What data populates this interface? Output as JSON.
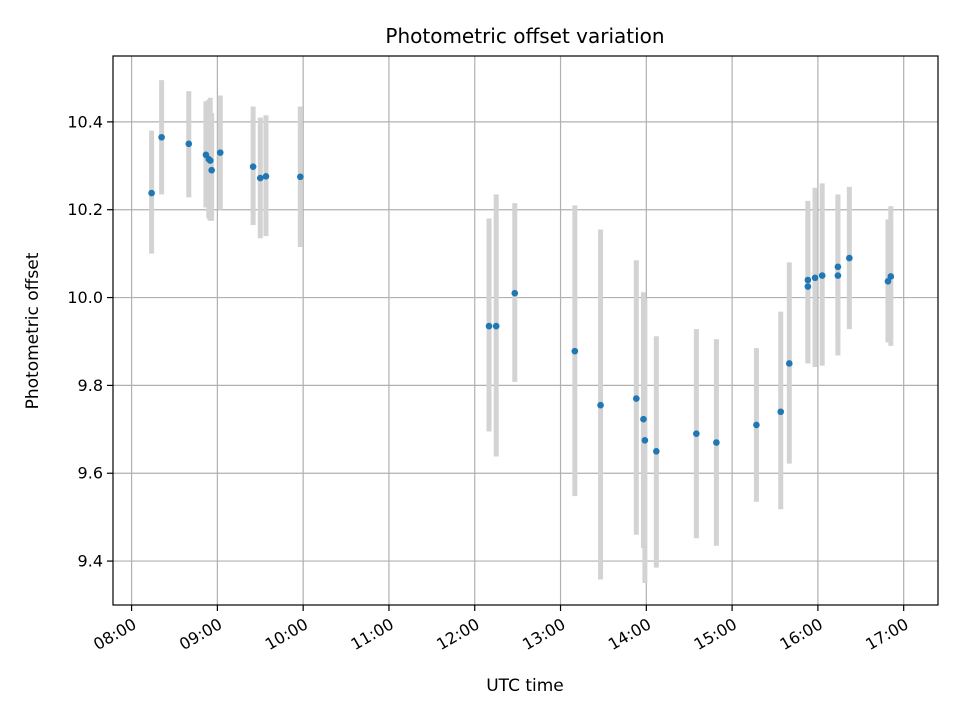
{
  "chart_data": {
    "type": "scatter",
    "title": "Photometric offset variation",
    "xlabel": "UTC time",
    "ylabel": "Photometric offset",
    "xlim": [
      "07:47",
      "17:24"
    ],
    "ylim": [
      9.3,
      10.55
    ],
    "x_ticks": [
      "08:00",
      "09:00",
      "10:00",
      "11:00",
      "12:00",
      "13:00",
      "14:00",
      "15:00",
      "16:00",
      "17:00"
    ],
    "y_ticks": [
      9.4,
      9.6,
      9.8,
      10.0,
      10.2,
      10.4
    ],
    "grid": true,
    "marker_color": "#1f77b4",
    "errorbar_color": "#d3d3d3",
    "points": [
      {
        "x": "08:14",
        "y": 10.238,
        "lo": 10.1,
        "hi": 10.38
      },
      {
        "x": "08:21",
        "y": 10.365,
        "lo": 10.235,
        "hi": 10.495
      },
      {
        "x": "08:40",
        "y": 10.35,
        "lo": 10.228,
        "hi": 10.47
      },
      {
        "x": "08:52",
        "y": 10.325,
        "lo": 10.205,
        "hi": 10.447
      },
      {
        "x": "08:54",
        "y": 10.315,
        "lo": 10.18,
        "hi": 10.45
      },
      {
        "x": "08:55",
        "y": 10.312,
        "lo": 10.175,
        "hi": 10.455
      },
      {
        "x": "08:56",
        "y": 10.29,
        "lo": 10.175,
        "hi": 10.42
      },
      {
        "x": "09:02",
        "y": 10.33,
        "lo": 10.2,
        "hi": 10.46
      },
      {
        "x": "09:25",
        "y": 10.298,
        "lo": 10.165,
        "hi": 10.435
      },
      {
        "x": "09:30",
        "y": 10.272,
        "lo": 10.135,
        "hi": 10.41
      },
      {
        "x": "09:34",
        "y": 10.276,
        "lo": 10.14,
        "hi": 10.415
      },
      {
        "x": "09:58",
        "y": 10.275,
        "lo": 10.115,
        "hi": 10.435
      },
      {
        "x": "12:10",
        "y": 9.935,
        "lo": 9.695,
        "hi": 10.18
      },
      {
        "x": "12:15",
        "y": 9.935,
        "lo": 9.638,
        "hi": 10.235
      },
      {
        "x": "12:28",
        "y": 10.01,
        "lo": 9.808,
        "hi": 10.215
      },
      {
        "x": "13:10",
        "y": 9.878,
        "lo": 9.548,
        "hi": 10.21
      },
      {
        "x": "13:28",
        "y": 9.755,
        "lo": 9.358,
        "hi": 10.155
      },
      {
        "x": "13:53",
        "y": 9.77,
        "lo": 9.46,
        "hi": 10.085
      },
      {
        "x": "13:58",
        "y": 9.723,
        "lo": 9.43,
        "hi": 10.012
      },
      {
        "x": "13:59",
        "y": 9.675,
        "lo": 9.35,
        "hi": 9.998
      },
      {
        "x": "14:07",
        "y": 9.65,
        "lo": 9.385,
        "hi": 9.912
      },
      {
        "x": "14:35",
        "y": 9.69,
        "lo": 9.452,
        "hi": 9.928
      },
      {
        "x": "14:49",
        "y": 9.67,
        "lo": 9.435,
        "hi": 9.905
      },
      {
        "x": "15:17",
        "y": 9.71,
        "lo": 9.535,
        "hi": 9.885
      },
      {
        "x": "15:34",
        "y": 9.74,
        "lo": 9.518,
        "hi": 9.968
      },
      {
        "x": "15:40",
        "y": 9.85,
        "lo": 9.622,
        "hi": 10.08
      },
      {
        "x": "15:53",
        "y": 10.025,
        "lo": 9.85,
        "hi": 10.22
      },
      {
        "x": "15:53",
        "y": 10.04,
        "lo": 9.85,
        "hi": 10.205
      },
      {
        "x": "15:58",
        "y": 10.045,
        "lo": 9.842,
        "hi": 10.25
      },
      {
        "x": "16:03",
        "y": 10.05,
        "lo": 9.845,
        "hi": 10.26
      },
      {
        "x": "16:14",
        "y": 10.05,
        "lo": 9.868,
        "hi": 10.235
      },
      {
        "x": "16:14",
        "y": 10.07,
        "lo": 9.91,
        "hi": 10.23
      },
      {
        "x": "16:22",
        "y": 10.09,
        "lo": 9.928,
        "hi": 10.252
      },
      {
        "x": "16:49",
        "y": 10.037,
        "lo": 9.898,
        "hi": 10.178
      },
      {
        "x": "16:51",
        "y": 10.048,
        "lo": 9.89,
        "hi": 10.208
      }
    ]
  }
}
